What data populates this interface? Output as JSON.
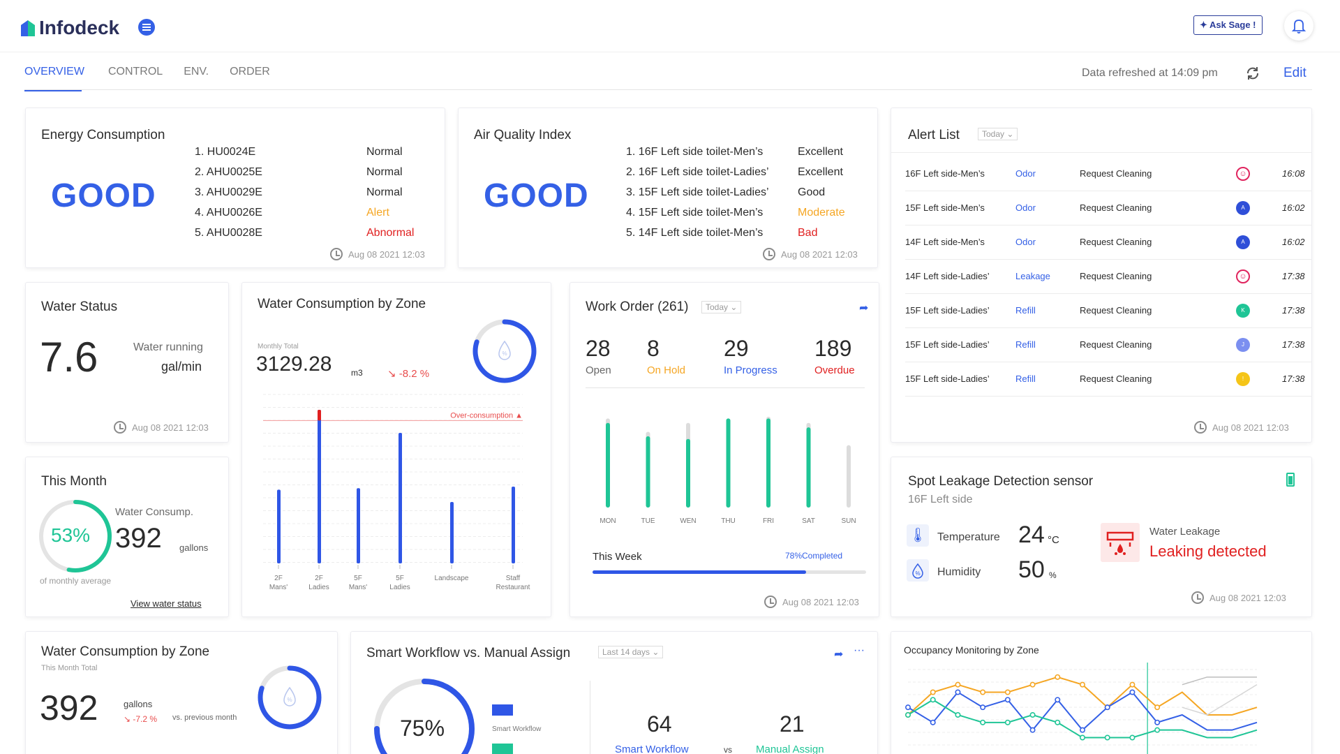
{
  "app": {
    "name": "Infodeck",
    "ask_sage": "✦ Ask Sage !"
  },
  "tabs": [
    "OVERVIEW",
    "CONTROL",
    "ENV.",
    "ORDER"
  ],
  "refresh_text": "Data refreshed at 14:09 pm",
  "edit_label": "Edit",
  "energy": {
    "title": "Energy Consumption",
    "status": "GOOD",
    "timestamp": "Aug 08 2021 12:03",
    "items": [
      {
        "name": "1. HU0024E",
        "state": "Normal",
        "color": "#2b2b2b"
      },
      {
        "name": "2. AHU0025E",
        "state": "Normal",
        "color": "#2b2b2b"
      },
      {
        "name": "3. AHU0029E",
        "state": "Normal",
        "color": "#2b2b2b"
      },
      {
        "name": "4. AHU0026E",
        "state": "Alert",
        "color": "#f5a623"
      },
      {
        "name": "5. AHU0028E",
        "state": "Abnormal",
        "color": "#e02020"
      }
    ]
  },
  "air": {
    "title": "Air Quality Index",
    "status": "GOOD",
    "timestamp": "Aug 08 2021 12:03",
    "items": [
      {
        "name": "1. 16F Left side toilet-Men’s",
        "state": "Excellent",
        "color": "#2b2b2b"
      },
      {
        "name": "2. 16F Left side toilet-Ladies’",
        "state": "Excellent",
        "color": "#2b2b2b"
      },
      {
        "name": "3. 15F Left side toilet-Ladies’",
        "state": "Good",
        "color": "#2b2b2b"
      },
      {
        "name": "4. 15F Left side toilet-Men’s",
        "state": "Moderate",
        "color": "#f5a623"
      },
      {
        "name": "5. 14F Left side toilet-Men’s",
        "state": "Bad",
        "color": "#e02020"
      }
    ]
  },
  "alerts": {
    "title": "Alert List",
    "filter": "Today",
    "timestamp": "Aug 08 2021 12:03",
    "rows": [
      {
        "loc": "16F Left side-Men’s",
        "type": "Odor",
        "action": "Request Cleaning",
        "avatar": "",
        "color": "#e0245e",
        "time": "16:08"
      },
      {
        "loc": "15F Left side-Men’s",
        "type": "Odor",
        "action": "Request Cleaning",
        "avatar": "A",
        "color": "#2f4fd8",
        "time": "16:02"
      },
      {
        "loc": "14F Left side-Men’s",
        "type": "Odor",
        "action": "Request Cleaning",
        "avatar": "A",
        "color": "#2f4fd8",
        "time": "16:02"
      },
      {
        "loc": "14F Left side-Ladies’",
        "type": "Leakage",
        "action": "Request Cleaning",
        "avatar": "",
        "color": "#e0245e",
        "time": "17:38"
      },
      {
        "loc": "15F Left side-Ladies’",
        "type": "Refill",
        "action": "Request Cleaning",
        "avatar": "K",
        "color": "#1fc596",
        "time": "17:38"
      },
      {
        "loc": "15F Left side-Ladies’",
        "type": "Refill",
        "action": "Request Cleaning",
        "avatar": "J",
        "color": "#7b8ff0",
        "time": "17:38"
      },
      {
        "loc": "15F Left side-Ladies’",
        "type": "Refill",
        "action": "Request Cleaning",
        "avatar": "!",
        "color": "#f5c518",
        "time": "17:38"
      }
    ]
  },
  "water_status": {
    "title": "Water Status",
    "value": "7.6",
    "label": "Water running",
    "unit": "gal/min",
    "timestamp": "Aug 08 2021 12:03"
  },
  "this_month": {
    "title": "This Month",
    "percent": 53,
    "percent_label": "53%",
    "caption": "Water Consump.",
    "value": "392",
    "unit": "gallons",
    "sub": "of monthly average",
    "link": "View water status"
  },
  "water_zone": {
    "title": "Water Consumption by Zone",
    "monthly_label": "Monthly Total",
    "value": "3129.28",
    "unit": "m3",
    "change": "↘ -8.2 %",
    "threshold_label": "Over-consumption ▲",
    "percent": 80
  },
  "work_order": {
    "title": "Work Order (261)",
    "filter": "Today",
    "stats": [
      {
        "value": "28",
        "label": "Open",
        "color": "#555"
      },
      {
        "value": "8",
        "label": "On Hold",
        "color": "#f5a623"
      },
      {
        "value": "29",
        "label": "In Progress",
        "color": "#3460e6"
      },
      {
        "value": "189",
        "label": "Overdue",
        "color": "#e02020"
      }
    ],
    "week_label": "This Week",
    "completed_label": "78%Completed",
    "completed": 78,
    "timestamp": "Aug 08 2021 12:03"
  },
  "spot_leak": {
    "title": "Spot Leakage Detection sensor",
    "location": "16F Left side",
    "temp_label": "Temperature",
    "temp_value": "24",
    "temp_unit": "°C",
    "hum_label": "Humidity",
    "hum_value": "50",
    "hum_unit": "%",
    "leak_label": "Water Leakage",
    "leak_status": "Leaking detected",
    "timestamp": "Aug 08 2021 12:03"
  },
  "water_zone2": {
    "title": "Water Consumption by Zone",
    "sub": "This Month Total",
    "value": "392",
    "unit": "gallons",
    "change": "↘ -7.2 %",
    "compare": "vs. previous month",
    "percent": 80
  },
  "workflow": {
    "title": "Smart Workflow vs. Manual Assign",
    "filter": "Last 14 days",
    "percent": 75,
    "percent_label": "75%",
    "legend_smart": "Smart Workflow",
    "smart_value": "64",
    "manual_value": "21",
    "smart_label": "Smart Workflow",
    "vs": "vs",
    "manual_label": "Manual Assign"
  },
  "occupancy": {
    "title": "Occupancy Monitoring by Zone"
  },
  "chart_data": [
    {
      "type": "bar",
      "categories": [
        "2F Mans'",
        "2F Ladies",
        "5F Mans'",
        "5F Ladies",
        "Landscape",
        "Staff Restaurant"
      ],
      "values": [
        48,
        100,
        49,
        85,
        40,
        50
      ],
      "threshold": 93,
      "ylim": [
        0,
        110
      ]
    },
    {
      "type": "bar",
      "categories": [
        "MON",
        "TUE",
        "WEN",
        "THU",
        "FRI",
        "SAT",
        "SUN"
      ],
      "series": [
        {
          "values": [
            95,
            80,
            77,
            100,
            100,
            90,
            0
          ]
        },
        {
          "values": [
            100,
            85,
            95,
            100,
            102,
            95,
            70
          ]
        }
      ],
      "ylim": [
        0,
        105
      ]
    },
    {
      "type": "line",
      "x": [
        1,
        2,
        3,
        4,
        5,
        6,
        7,
        8,
        9,
        10,
        11,
        12,
        13,
        14,
        15
      ],
      "series": [
        {
          "values": [
            6,
            9,
            10,
            9,
            9,
            10,
            11,
            10,
            7,
            10,
            7,
            9,
            6,
            6,
            7
          ],
          "color": "#f5a623"
        },
        {
          "values": [
            7,
            5,
            9,
            7,
            8,
            4,
            8,
            4,
            7,
            9,
            5,
            6,
            4,
            4,
            5
          ],
          "color": "#3460e6"
        },
        {
          "values": [
            6,
            8,
            6,
            5,
            5,
            6,
            5,
            3,
            3,
            3,
            4,
            4,
            3,
            3,
            4
          ],
          "color": "#1fc596"
        },
        {
          "values": [
            null,
            null,
            null,
            null,
            null,
            null,
            null,
            null,
            null,
            null,
            null,
            10,
            11,
            11,
            11
          ],
          "color": "#bdbdbd"
        },
        {
          "values": [
            null,
            null,
            null,
            null,
            null,
            null,
            null,
            null,
            null,
            null,
            null,
            7,
            6,
            8,
            10
          ],
          "color": "#d6d6d6"
        }
      ]
    }
  ]
}
